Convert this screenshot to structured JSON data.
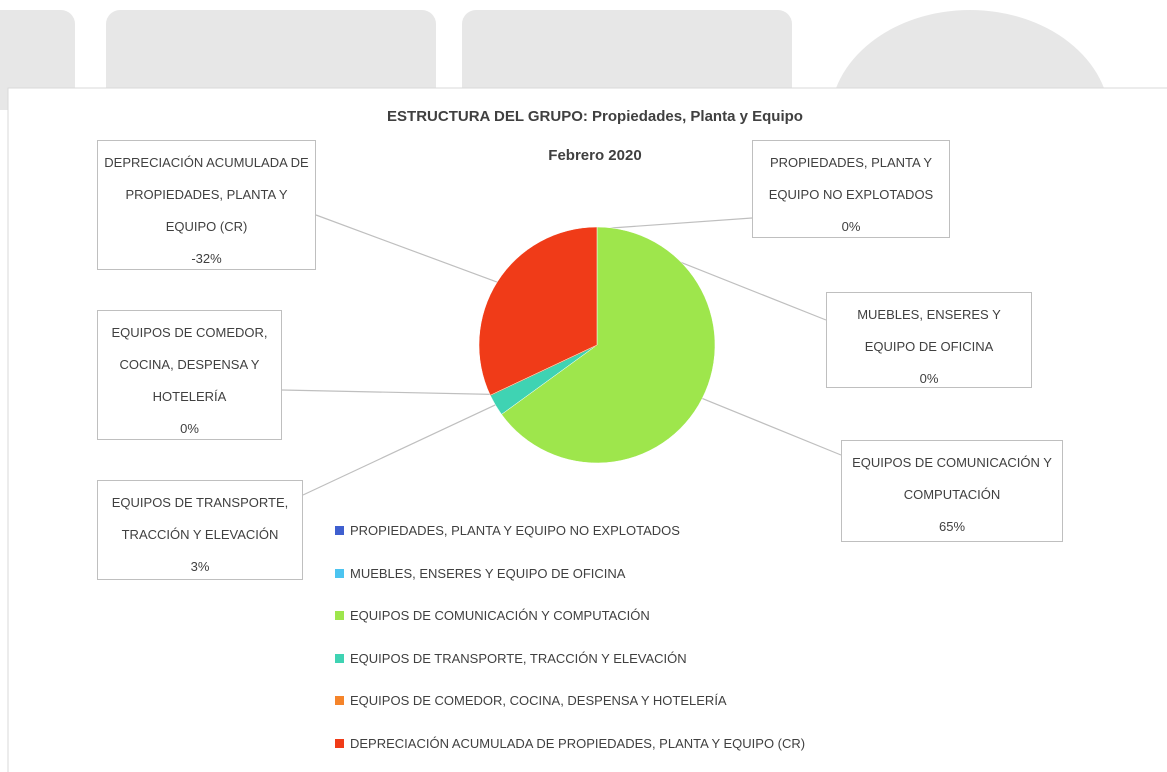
{
  "chart_data": {
    "type": "pie",
    "title": "ESTRUCTURA DEL GRUPO: Propiedades, Planta y Equipo",
    "subtitle": "Febrero 2020",
    "categories": [
      "PROPIEDADES, PLANTA Y EQUIPO NO EXPLOTADOS",
      "MUEBLES, ENSERES Y EQUIPO DE OFICINA",
      "EQUIPOS DE COMUNICACIÓN Y COMPUTACIÓN",
      "EQUIPOS DE TRANSPORTE, TRACCIÓN Y ELEVACIÓN",
      "EQUIPOS DE COMEDOR, COCINA, DESPENSA Y HOTELERÍA",
      "DEPRECIACIÓN ACUMULADA DE PROPIEDADES, PLANTA Y EQUIPO (CR)"
    ],
    "values": [
      0,
      0,
      65,
      3,
      0,
      -32
    ],
    "value_labels": [
      "0%",
      "0%",
      "65%",
      "3%",
      "0%",
      "-32%"
    ],
    "colors": [
      "#3f5fcf",
      "#4cc4f0",
      "#9ee64c",
      "#3fd3b3",
      "#f5842a",
      "#f03b18"
    ],
    "legend": "bottom"
  }
}
